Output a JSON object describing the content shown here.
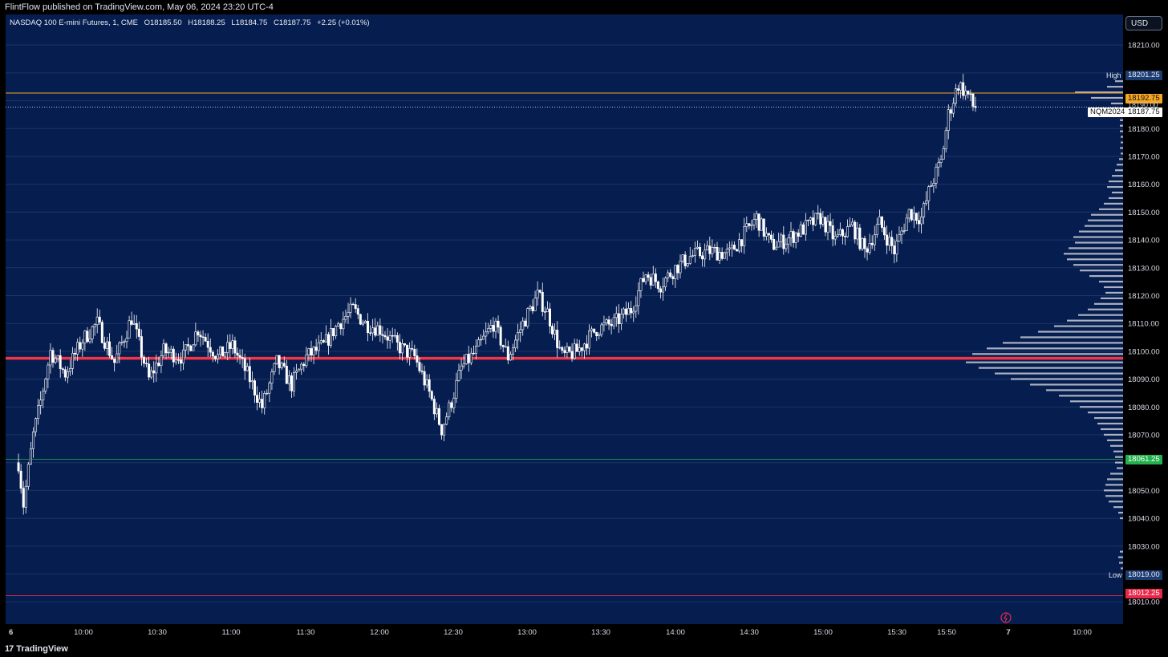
{
  "header": {
    "publisher": "FlintFlow published on TradingView.com, May 06, 2024 23:20 UTC-4"
  },
  "legend": {
    "symbol": "NASDAQ 100 E-mini Futures, 1, CME",
    "open": "O18185.50",
    "high": "H18188.25",
    "low": "L18184.75",
    "close": "C18187.75",
    "change": "+2.25 (+0.01%)"
  },
  "currency_button": "USD",
  "footer": {
    "brand": "TradingView"
  },
  "colors": {
    "background": "#061d4f",
    "candle": "#ffffff",
    "volume_profile": "#c8cbd4",
    "poc_line": "#f23645",
    "orange_line": "#f5a623",
    "green_line": "#22b14c",
    "red_line": "#e8284a"
  },
  "price_labels": {
    "high_word": "High",
    "high_value": "18201.25",
    "orange_value": "18192.75",
    "partial_value": "18190.00",
    "symbol_tag": "NQM2024",
    "last_value": "18187.75",
    "green_value": "18061.25",
    "low_word": "Low",
    "low_value": "18019.00",
    "red_value": "18012.25"
  },
  "chart_data": {
    "type": "candlestick",
    "symbol": "NQM2024",
    "y_ticks": [
      18210,
      18200,
      18190,
      18180,
      18170,
      18160,
      18150,
      18140,
      18130,
      18120,
      18110,
      18100,
      18090,
      18080,
      18070,
      18060,
      18050,
      18040,
      18030,
      18020,
      18010
    ],
    "y_tick_labels": [
      "18210.00",
      "",
      "",
      "18180.00",
      "18170.00",
      "18160.00",
      "18150.00",
      "18140.00",
      "18130.00",
      "18120.00",
      "18110.00",
      "18100.00",
      "18090.00",
      "18080.00",
      "18070.00",
      "",
      "18050.00",
      "18040.00",
      "18030.00",
      "",
      "18010.00"
    ],
    "x_tick_labels": [
      "6",
      "10:00",
      "10:30",
      "11:00",
      "11:30",
      "12:00",
      "12:30",
      "13:00",
      "13:30",
      "14:00",
      "14:30",
      "15:00",
      "15:30",
      "15:50",
      "7",
      "10:00"
    ],
    "ylim": [
      18002,
      18221
    ],
    "horizontal_lines": {
      "poc": 18097.5,
      "orange": 18192.75,
      "last": 18187.75,
      "green": 18061.25,
      "red": 18012.25
    },
    "price_path": [
      [
        "9:31",
        18060
      ],
      [
        "9:33",
        18045
      ],
      [
        "9:37",
        18070
      ],
      [
        "9:40",
        18082
      ],
      [
        "9:44",
        18100
      ],
      [
        "9:50",
        18092
      ],
      [
        "9:57",
        18104
      ],
      [
        "10:03",
        18110
      ],
      [
        "10:10",
        18096
      ],
      [
        "10:17",
        18112
      ],
      [
        "10:24",
        18090
      ],
      [
        "10:30",
        18100
      ],
      [
        "10:38",
        18098
      ],
      [
        "10:44",
        18108
      ],
      [
        "10:52",
        18098
      ],
      [
        "10:58",
        18102
      ],
      [
        "11:05",
        18090
      ],
      [
        "11:10",
        18080
      ],
      [
        "11:16",
        18096
      ],
      [
        "11:22",
        18088
      ],
      [
        "11:28",
        18098
      ],
      [
        "11:35",
        18102
      ],
      [
        "11:41",
        18110
      ],
      [
        "11:47",
        18115
      ],
      [
        "11:52",
        18110
      ],
      [
        "11:58",
        18108
      ],
      [
        "12:05",
        18102
      ],
      [
        "12:12",
        18098
      ],
      [
        "12:18",
        18085
      ],
      [
        "12:23",
        18072
      ],
      [
        "12:27",
        18082
      ],
      [
        "12:31",
        18094
      ],
      [
        "12:37",
        18100
      ],
      [
        "12:44",
        18110
      ],
      [
        "12:50",
        18098
      ],
      [
        "12:56",
        18110
      ],
      [
        "13:02",
        18120
      ],
      [
        "13:06",
        18114
      ],
      [
        "13:12",
        18098
      ],
      [
        "13:18",
        18100
      ],
      [
        "13:26",
        18108
      ],
      [
        "13:33",
        18110
      ],
      [
        "13:40",
        18115
      ],
      [
        "13:46",
        18128
      ],
      [
        "13:52",
        18124
      ],
      [
        "13:58",
        18130
      ],
      [
        "14:04",
        18134
      ],
      [
        "14:12",
        18136
      ],
      [
        "14:20",
        18135
      ],
      [
        "14:26",
        18142
      ],
      [
        "14:31",
        18148
      ],
      [
        "14:37",
        18138
      ],
      [
        "14:43",
        18140
      ],
      [
        "14:50",
        18144
      ],
      [
        "14:57",
        18148
      ],
      [
        "15:03",
        18140
      ],
      [
        "15:10",
        18145
      ],
      [
        "15:15",
        18136
      ],
      [
        "15:21",
        18146
      ],
      [
        "15:27",
        18136
      ],
      [
        "15:33",
        18150
      ],
      [
        "15:38",
        18148
      ],
      [
        "15:42",
        18160
      ],
      [
        "15:46",
        18168
      ],
      [
        "15:49",
        18185
      ],
      [
        "15:53",
        18196
      ],
      [
        "15:57",
        18192
      ],
      [
        "15:59",
        18188
      ],
      [
        "16:01",
        18187.75
      ]
    ],
    "volume_profile": [
      [
        18197,
        10
      ],
      [
        18195,
        20
      ],
      [
        18193,
        60
      ],
      [
        18191,
        40
      ],
      [
        18189,
        15
      ],
      [
        18187,
        8
      ],
      [
        18185,
        5
      ],
      [
        18183,
        4
      ],
      [
        18181,
        4
      ],
      [
        18179,
        4
      ],
      [
        18177,
        3
      ],
      [
        18175,
        3
      ],
      [
        18173,
        4
      ],
      [
        18171,
        3
      ],
      [
        18169,
        5
      ],
      [
        18167,
        8
      ],
      [
        18165,
        10
      ],
      [
        18163,
        14
      ],
      [
        18161,
        18
      ],
      [
        18159,
        20
      ],
      [
        18157,
        14
      ],
      [
        18155,
        18
      ],
      [
        18153,
        24
      ],
      [
        18151,
        30
      ],
      [
        18149,
        40
      ],
      [
        18147,
        44
      ],
      [
        18145,
        48
      ],
      [
        18143,
        55
      ],
      [
        18141,
        62
      ],
      [
        18139,
        60
      ],
      [
        18137,
        68
      ],
      [
        18135,
        74
      ],
      [
        18133,
        70
      ],
      [
        18131,
        62
      ],
      [
        18129,
        54
      ],
      [
        18127,
        42
      ],
      [
        18125,
        30
      ],
      [
        18123,
        24
      ],
      [
        18121,
        22
      ],
      [
        18119,
        28
      ],
      [
        18117,
        36
      ],
      [
        18115,
        44
      ],
      [
        18113,
        56
      ],
      [
        18111,
        70
      ],
      [
        18109,
        86
      ],
      [
        18107,
        106
      ],
      [
        18105,
        128
      ],
      [
        18103,
        150
      ],
      [
        18101,
        170
      ],
      [
        18099,
        188
      ],
      [
        18097.5,
        200
      ],
      [
        18096,
        196
      ],
      [
        18094,
        180
      ],
      [
        18092,
        160
      ],
      [
        18090,
        140
      ],
      [
        18088,
        116
      ],
      [
        18086,
        96
      ],
      [
        18084,
        80
      ],
      [
        18082,
        66
      ],
      [
        18080,
        54
      ],
      [
        18078,
        44
      ],
      [
        18076,
        36
      ],
      [
        18074,
        32
      ],
      [
        18072,
        28
      ],
      [
        18070,
        24
      ],
      [
        18068,
        20
      ],
      [
        18066,
        16
      ],
      [
        18064,
        12
      ],
      [
        18062,
        10
      ],
      [
        18060,
        10
      ],
      [
        18058,
        8
      ],
      [
        18056,
        16
      ],
      [
        18054,
        20
      ],
      [
        18052,
        22
      ],
      [
        18050,
        24
      ],
      [
        18048,
        22
      ],
      [
        18046,
        18
      ],
      [
        18044,
        12
      ],
      [
        18042,
        6
      ],
      [
        18040,
        4
      ],
      [
        18028,
        4
      ],
      [
        18026,
        6
      ],
      [
        18024,
        5
      ],
      [
        18022,
        3
      ]
    ]
  }
}
